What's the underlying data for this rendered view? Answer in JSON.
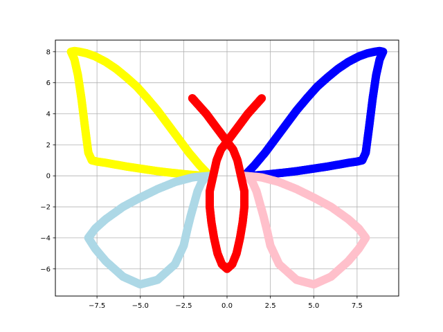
{
  "chart_data": {
    "type": "scatter",
    "title": "",
    "xlabel": "",
    "ylabel": "",
    "xlim": [
      -9.9,
      9.9
    ],
    "ylim": [
      -7.75,
      8.75
    ],
    "grid": true,
    "x_ticks": [
      -7.5,
      -5.0,
      -2.5,
      0.0,
      2.5,
      5.0,
      7.5
    ],
    "x_tick_labels": [
      "−7.5",
      "−5.0",
      "−2.5",
      "0.0",
      "2.5",
      "5.0",
      "7.5"
    ],
    "y_ticks": [
      -6,
      -4,
      -2,
      0,
      2,
      4,
      6,
      8
    ],
    "y_tick_labels": [
      "−6",
      "−4",
      "−2",
      "0",
      "2",
      "4",
      "6",
      "8"
    ],
    "series": [
      {
        "color": "#ffff00",
        "x": [
          -1.0,
          -1.6,
          -2.2,
          -2.8,
          -3.4,
          -4.0,
          -4.6,
          -5.2,
          -5.8,
          -6.4,
          -7.0,
          -7.5,
          -7.8,
          -8.0,
          -8.2,
          -8.4,
          -8.6,
          -8.8,
          -9.0,
          -8.8,
          -8.5,
          -8.1,
          -7.6,
          -7.0,
          -6.4,
          -5.8,
          -5.2,
          -4.6,
          -4.0,
          -3.4,
          -2.8,
          -2.2,
          -1.6,
          -1.0
        ],
        "y": [
          0.0,
          0.03,
          0.08,
          0.15,
          0.22,
          0.3,
          0.4,
          0.5,
          0.6,
          0.72,
          0.84,
          0.92,
          1.0,
          1.5,
          3.2,
          5.0,
          6.5,
          7.5,
          8.0,
          8.05,
          8.0,
          7.9,
          7.7,
          7.35,
          6.9,
          6.35,
          5.75,
          5.0,
          4.2,
          3.3,
          2.4,
          1.5,
          0.7,
          0.0
        ]
      },
      {
        "color": "#0000ff",
        "x": [
          1.0,
          1.6,
          2.2,
          2.8,
          3.4,
          4.0,
          4.6,
          5.2,
          5.8,
          6.4,
          7.0,
          7.5,
          7.8,
          8.0,
          8.2,
          8.4,
          8.6,
          8.8,
          9.0,
          8.8,
          8.5,
          8.1,
          7.6,
          7.0,
          6.4,
          5.8,
          5.2,
          4.6,
          4.0,
          3.4,
          2.8,
          2.2,
          1.6,
          1.0
        ],
        "y": [
          0.0,
          0.03,
          0.08,
          0.15,
          0.22,
          0.3,
          0.4,
          0.5,
          0.6,
          0.72,
          0.84,
          0.92,
          1.0,
          1.5,
          3.2,
          5.0,
          6.5,
          7.5,
          8.0,
          8.05,
          8.0,
          7.9,
          7.7,
          7.35,
          6.9,
          6.35,
          5.75,
          5.0,
          4.2,
          3.3,
          2.4,
          1.5,
          0.7,
          0.0
        ]
      },
      {
        "color": "#add8e6",
        "x": [
          -1.0,
          -2.0,
          -3.0,
          -4.0,
          -5.0,
          -6.0,
          -7.0,
          -7.6,
          -8.0,
          -7.6,
          -7.0,
          -6.0,
          -5.0,
          -4.0,
          -3.0,
          -2.5,
          -2.3,
          -2.1,
          -2.0,
          -1.9,
          -1.7,
          -1.5,
          -1.3,
          -1.0
        ],
        "y": [
          0.0,
          -0.1,
          -0.4,
          -0.85,
          -1.4,
          -2.0,
          -2.8,
          -3.4,
          -4.0,
          -4.7,
          -5.5,
          -6.5,
          -7.0,
          -6.7,
          -5.7,
          -4.5,
          -3.5,
          -2.6,
          -2.2,
          -1.8,
          -1.0,
          -0.5,
          -0.15,
          0.0
        ]
      },
      {
        "color": "#ffc0cb",
        "x": [
          1.0,
          2.0,
          3.0,
          4.0,
          5.0,
          6.0,
          7.0,
          7.6,
          8.0,
          7.6,
          7.0,
          6.0,
          5.0,
          4.0,
          3.0,
          2.5,
          2.3,
          2.1,
          2.0,
          1.9,
          1.7,
          1.5,
          1.3,
          1.0
        ],
        "y": [
          0.0,
          -0.1,
          -0.4,
          -0.85,
          -1.4,
          -2.0,
          -2.8,
          -3.4,
          -4.0,
          -4.7,
          -5.5,
          -6.5,
          -7.0,
          -6.7,
          -5.7,
          -4.5,
          -3.5,
          -2.6,
          -2.2,
          -1.8,
          -1.0,
          -0.5,
          -0.15,
          0.0
        ]
      },
      {
        "color": "#ff0000",
        "x": [
          -2.0,
          -1.6,
          -1.2,
          -0.8,
          -0.4,
          0.0,
          0.4,
          0.8,
          1.2,
          1.6,
          2.0,
          1.6,
          1.2,
          0.8,
          0.4,
          0.0,
          -0.4,
          -0.8,
          -1.2,
          -1.6,
          -2.0
        ],
        "y": [
          5.0,
          4.5,
          4.0,
          3.4,
          2.8,
          2.2,
          2.8,
          3.4,
          4.0,
          4.5,
          5.0,
          4.5,
          4.0,
          3.4,
          2.8,
          2.2,
          2.8,
          3.4,
          4.0,
          4.5,
          5.0
        ]
      },
      {
        "color": "#ff0000",
        "x": [
          0.0,
          0.35,
          0.6,
          0.8,
          1.0,
          1.0,
          0.9,
          0.75,
          0.55,
          0.3,
          0.0,
          -0.3,
          -0.55,
          -0.75,
          -0.9,
          -1.0,
          -1.0,
          -0.8,
          -0.6,
          -0.35,
          0.0
        ],
        "y": [
          2.2,
          1.7,
          1.0,
          0.0,
          -1.0,
          -2.0,
          -3.0,
          -4.0,
          -5.0,
          -5.7,
          -6.0,
          -5.7,
          -5.0,
          -4.0,
          -3.0,
          -2.0,
          -1.0,
          0.0,
          1.0,
          1.7,
          2.2
        ]
      }
    ]
  }
}
